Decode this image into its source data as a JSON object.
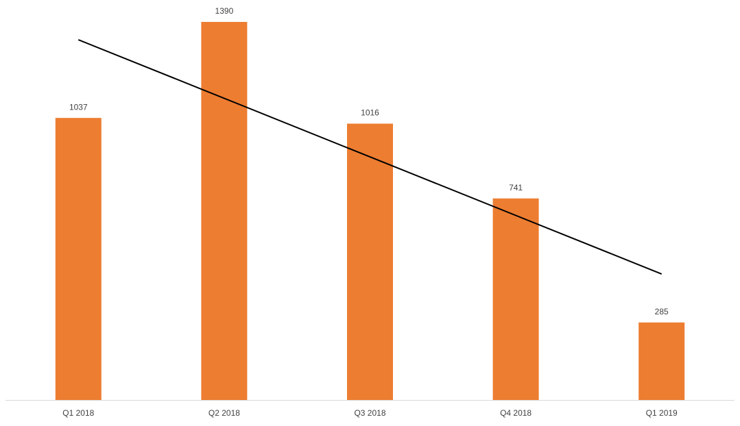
{
  "chart_data": {
    "type": "bar",
    "categories": [
      "Q1 2018",
      "Q2 2018",
      "Q3 2018",
      "Q4 2018",
      "Q1 2019"
    ],
    "values": [
      1037,
      1390,
      1016,
      741,
      285
    ],
    "color": "#ED7D31",
    "trendline": true,
    "trendline_color": "#000000"
  }
}
